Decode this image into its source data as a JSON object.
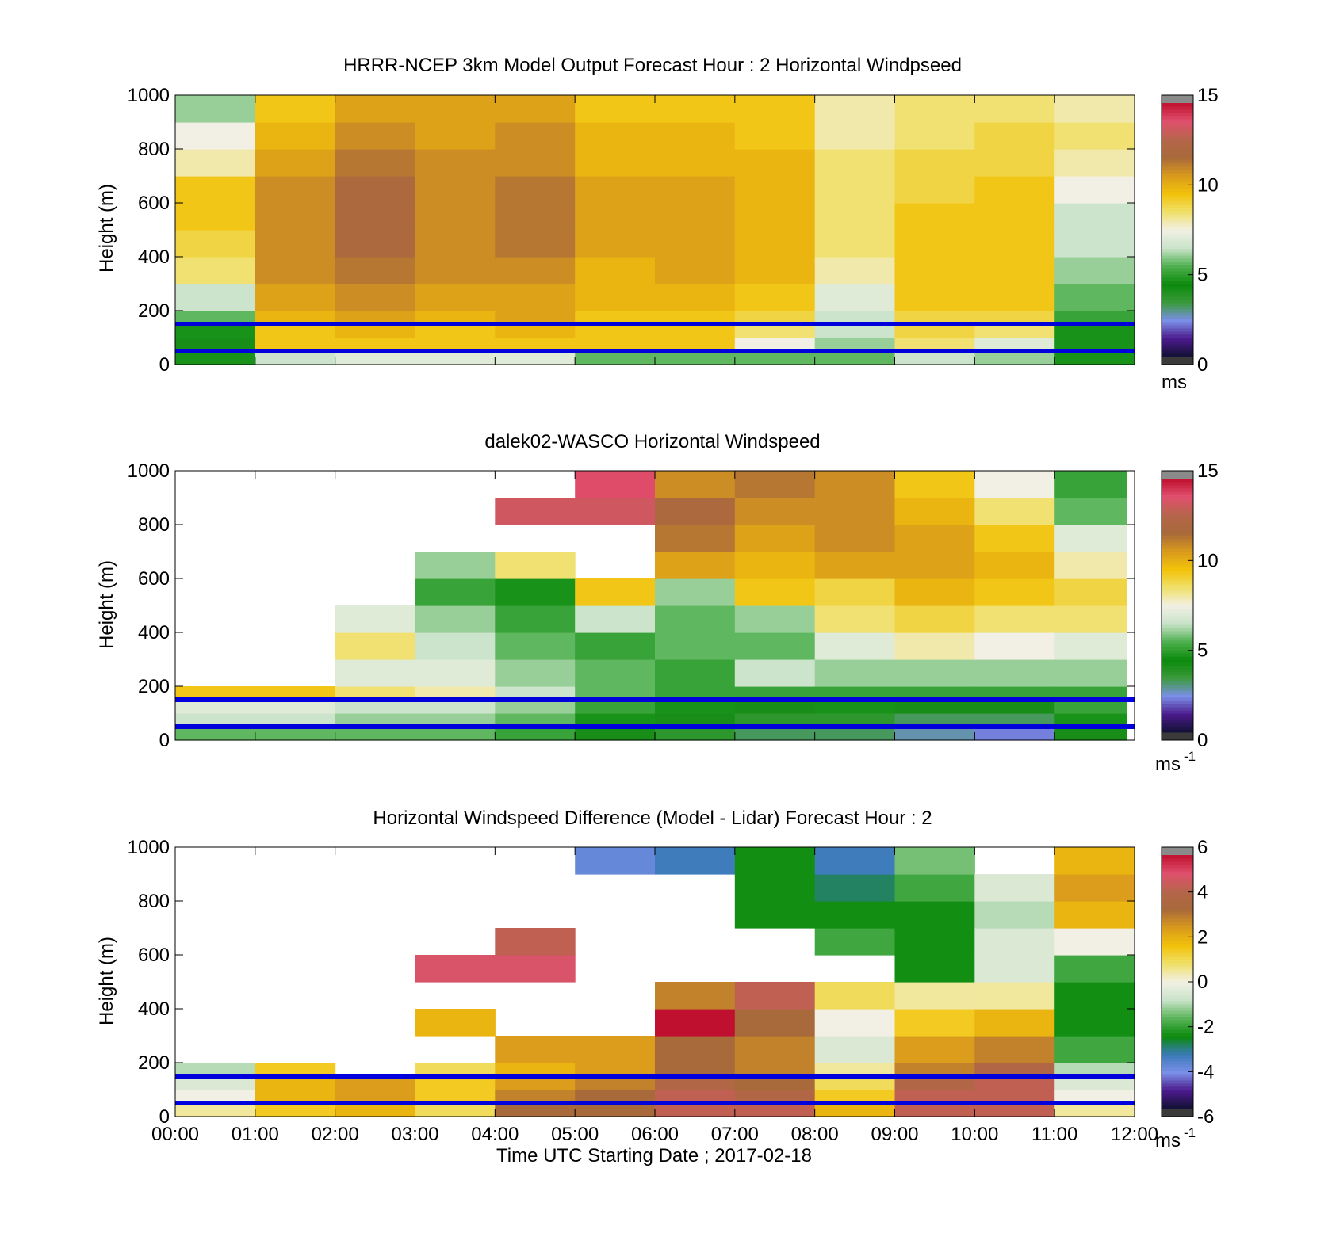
{
  "colors": {
    "speed_scale": [
      "#3a3a3a",
      "#111133",
      "#4b1a8c",
      "#7b8fe8",
      "#3a9a3a",
      "#0b8a0b",
      "#4fb04f",
      "#c9e3c9",
      "#f2f0e4",
      "#f0e06a",
      "#f2c20a",
      "#d99a1c",
      "#a86a3a",
      "#b5654a",
      "#e0506e",
      "#c01030",
      "#8a8a8a"
    ],
    "diff_scale": [
      "#3a3a3a",
      "#111133",
      "#4b1a8c",
      "#7b8fe8",
      "#3a7ab8",
      "#0b8a0b",
      "#5ab45a",
      "#c9e3c9",
      "#f2f0e4",
      "#f0e06a",
      "#f2c20a",
      "#d99a1c",
      "#a86a3a",
      "#b5654a",
      "#e0506e",
      "#c01030",
      "#8a8a8a"
    ],
    "reference_line": "#0000dd"
  },
  "chart_data": [
    {
      "type": "heatmap",
      "title": "HRRR-NCEP 3km Model Output   Forecast Hour : 2 Horizontal Windpseed",
      "ylabel": "Height (m)",
      "ylim": [
        0,
        1000
      ],
      "yticks": [
        0,
        200,
        400,
        600,
        800,
        1000
      ],
      "xlim": [
        0,
        12
      ],
      "colorbar": {
        "min": 0,
        "max": 15,
        "ticks": [
          0,
          5,
          10,
          15
        ],
        "unit": "ms",
        "unit_sup": ""
      },
      "reference_heights_m": [
        50,
        150
      ],
      "heights_m": [
        50,
        100,
        150,
        200,
        300,
        400,
        500,
        600,
        700,
        800,
        900,
        1000
      ],
      "columns": [
        {
          "t0": 0,
          "t1": 1,
          "values": [
            4.5,
            4.0,
            4.5,
            5.5,
            6.5,
            8.5,
            9.0,
            9.5,
            9.5,
            8.0,
            7.5,
            6.0
          ]
        },
        {
          "t0": 1,
          "t1": 2,
          "values": [
            6.5,
            9.5,
            9.5,
            10.0,
            10.5,
            11.0,
            11.0,
            11.0,
            11.0,
            10.5,
            10.0,
            9.5
          ]
        },
        {
          "t0": 2,
          "t1": 3,
          "values": [
            7.0,
            9.5,
            10.0,
            10.5,
            11.0,
            11.5,
            12.0,
            12.0,
            12.0,
            11.5,
            11.0,
            10.5
          ]
        },
        {
          "t0": 3,
          "t1": 4,
          "values": [
            7.0,
            9.5,
            9.5,
            10.0,
            10.5,
            11.0,
            11.0,
            11.0,
            11.0,
            11.0,
            10.5,
            10.5
          ]
        },
        {
          "t0": 4,
          "t1": 5,
          "values": [
            7.0,
            9.5,
            10.0,
            10.5,
            10.5,
            11.0,
            11.5,
            11.5,
            11.5,
            11.0,
            11.0,
            10.5
          ]
        },
        {
          "t0": 5,
          "t1": 6,
          "values": [
            5.5,
            9.5,
            9.5,
            9.5,
            10.0,
            10.0,
            10.5,
            10.5,
            10.5,
            10.0,
            10.0,
            9.5
          ]
        },
        {
          "t0": 6,
          "t1": 7,
          "values": [
            5.5,
            9.5,
            9.5,
            9.5,
            10.0,
            10.5,
            10.5,
            10.5,
            10.5,
            10.0,
            10.0,
            9.5
          ]
        },
        {
          "t0": 7,
          "t1": 8,
          "values": [
            5.5,
            7.5,
            8.5,
            9.0,
            9.5,
            10.0,
            10.0,
            10.0,
            10.0,
            10.0,
            9.5,
            9.5
          ]
        },
        {
          "t0": 8,
          "t1": 9,
          "values": [
            5.5,
            6.0,
            6.5,
            6.5,
            7.0,
            8.0,
            8.5,
            8.5,
            8.5,
            8.5,
            8.0,
            8.0
          ]
        },
        {
          "t0": 9,
          "t1": 10,
          "values": [
            6.5,
            8.5,
            9.0,
            9.0,
            9.5,
            9.5,
            9.5,
            9.5,
            9.0,
            9.0,
            8.5,
            8.5
          ]
        },
        {
          "t0": 10,
          "t1": 11,
          "values": [
            6.0,
            7.0,
            8.5,
            9.0,
            9.5,
            9.5,
            9.5,
            9.5,
            9.5,
            9.0,
            9.0,
            8.5
          ]
        },
        {
          "t0": 11,
          "t1": 12,
          "values": [
            4.5,
            4.5,
            4.5,
            5.0,
            5.5,
            6.0,
            6.5,
            6.5,
            7.5,
            8.0,
            8.5,
            8.0
          ]
        }
      ]
    },
    {
      "type": "heatmap",
      "title": "dalek02-WASCO  Horizontal Windspeed",
      "ylabel": "Height (m)",
      "ylim": [
        0,
        1000
      ],
      "yticks": [
        0,
        200,
        400,
        600,
        800,
        1000
      ],
      "xlim": [
        0,
        12
      ],
      "colorbar": {
        "min": 0,
        "max": 15,
        "ticks": [
          0,
          5,
          10,
          15
        ],
        "unit": "ms",
        "unit_sup": "-1"
      },
      "reference_heights_m": [
        50,
        150
      ],
      "heights_m": [
        50,
        100,
        150,
        200,
        300,
        400,
        500,
        600,
        700,
        800,
        900,
        1000
      ],
      "columns": [
        {
          "t0": 0.0,
          "t1": 1.0,
          "values": [
            5.5,
            6.5,
            7.0,
            9.5,
            null,
            null,
            null,
            null,
            null,
            null,
            null,
            null
          ]
        },
        {
          "t0": 1.0,
          "t1": 2.0,
          "values": [
            5.5,
            6.5,
            7.0,
            9.5,
            null,
            null,
            null,
            null,
            null,
            null,
            null,
            null
          ]
        },
        {
          "t0": 2.0,
          "t1": 3.0,
          "values": [
            5.5,
            6.0,
            6.5,
            8.5,
            7.0,
            8.5,
            7.0,
            null,
            null,
            null,
            null,
            null
          ]
        },
        {
          "t0": 3.0,
          "t1": 4.0,
          "values": [
            5.5,
            6.0,
            6.5,
            8.0,
            7.0,
            6.5,
            6.0,
            5.0,
            6.0,
            null,
            null,
            null
          ]
        },
        {
          "t0": 4.0,
          "t1": 5.0,
          "values": [
            5.0,
            5.5,
            6.0,
            6.5,
            6.0,
            5.5,
            5.0,
            4.5,
            8.5,
            null,
            13.5,
            null
          ]
        },
        {
          "t0": 5.0,
          "t1": 6.0,
          "values": [
            4.0,
            4.5,
            5.0,
            5.5,
            5.5,
            5.0,
            6.5,
            9.5,
            null,
            null,
            13.5,
            14.0
          ]
        },
        {
          "t0": 6.0,
          "t1": 7.0,
          "values": [
            3.5,
            4.0,
            4.5,
            5.0,
            5.0,
            5.5,
            5.5,
            6.0,
            10.5,
            11.5,
            12.0,
            11.0
          ]
        },
        {
          "t0": 7.0,
          "t1": 8.0,
          "values": [
            3.0,
            3.5,
            4.0,
            5.0,
            6.5,
            5.5,
            6.0,
            9.5,
            10.0,
            10.5,
            11.0,
            11.5
          ]
        },
        {
          "t0": 8.0,
          "t1": 9.0,
          "values": [
            3.0,
            3.5,
            4.5,
            5.0,
            6.0,
            7.0,
            8.5,
            9.0,
            10.5,
            11.0,
            11.0,
            11.0
          ]
        },
        {
          "t0": 9.0,
          "t1": 10.0,
          "values": [
            2.5,
            3.0,
            4.0,
            5.0,
            6.0,
            8.0,
            9.0,
            10.0,
            10.5,
            10.5,
            10.0,
            9.5
          ]
        },
        {
          "t0": 10.0,
          "t1": 11.0,
          "values": [
            2.0,
            3.0,
            4.0,
            5.0,
            6.0,
            7.5,
            8.5,
            9.5,
            10.0,
            9.5,
            8.5,
            7.5
          ]
        },
        {
          "t0": 11.0,
          "t1": 11.9,
          "values": [
            4.0,
            4.5,
            5.0,
            5.0,
            6.0,
            7.0,
            8.5,
            9.0,
            8.0,
            7.0,
            5.5,
            5.0
          ]
        }
      ]
    },
    {
      "type": "heatmap",
      "title": "Horizontal Windspeed Difference (Model - Lidar) Forecast Hour : 2",
      "ylabel": "Height (m)",
      "xlabel": "Time UTC  Starting Date ; 2017-02-18",
      "ylim": [
        0,
        1000
      ],
      "yticks": [
        0,
        200,
        400,
        600,
        800,
        1000
      ],
      "xlim": [
        0,
        12
      ],
      "xticks": [
        "00:00",
        "01:00",
        "02:00",
        "03:00",
        "04:00",
        "05:00",
        "06:00",
        "07:00",
        "08:00",
        "09:00",
        "10:00",
        "11:00",
        "12:00"
      ],
      "colorbar": {
        "min": -6,
        "max": 6,
        "ticks": [
          -6,
          -4,
          -2,
          0,
          2,
          4,
          6
        ],
        "unit": "ms",
        "unit_sup": "-1"
      },
      "reference_heights_m": [
        50,
        150
      ],
      "heights_m": [
        50,
        100,
        150,
        200,
        300,
        400,
        500,
        600,
        700,
        800,
        900,
        1000
      ],
      "columns": [
        {
          "t0": 0,
          "t1": 1,
          "values": [
            0.5,
            0.0,
            -0.5,
            -1.0,
            null,
            null,
            null,
            null,
            null,
            null,
            null,
            null
          ]
        },
        {
          "t0": 1,
          "t1": 2,
          "values": [
            1.5,
            2.0,
            2.0,
            1.5,
            null,
            null,
            null,
            null,
            null,
            null,
            null,
            null
          ]
        },
        {
          "t0": 2,
          "t1": 3,
          "values": [
            2.0,
            2.5,
            2.5,
            null,
            null,
            null,
            null,
            null,
            null,
            null,
            null,
            null
          ]
        },
        {
          "t0": 3,
          "t1": 4,
          "values": [
            1.0,
            1.5,
            1.5,
            1.0,
            null,
            2.0,
            null,
            5.0,
            null,
            null,
            null,
            null
          ]
        },
        {
          "t0": 4,
          "t1": 5,
          "values": [
            3.5,
            3.0,
            2.5,
            2.0,
            2.5,
            null,
            null,
            5.0,
            4.5,
            null,
            null,
            null
          ]
        },
        {
          "t0": 5,
          "t1": 6,
          "values": [
            3.5,
            3.5,
            3.0,
            2.5,
            2.5,
            null,
            null,
            null,
            null,
            null,
            null,
            -4.0
          ]
        },
        {
          "t0": 6,
          "t1": 7,
          "values": [
            4.5,
            4.5,
            4.0,
            3.5,
            3.5,
            6.0,
            3.0,
            null,
            null,
            null,
            null,
            -3.5
          ]
        },
        {
          "t0": 7,
          "t1": 8,
          "values": [
            4.5,
            4.0,
            3.5,
            3.0,
            3.0,
            3.5,
            4.5,
            null,
            null,
            -2.5,
            -2.5,
            -2.5
          ]
        },
        {
          "t0": 8,
          "t1": 9,
          "values": [
            2.0,
            1.5,
            1.0,
            0.5,
            -0.5,
            0.0,
            1.0,
            null,
            -2.0,
            -2.5,
            -3.0,
            -3.5
          ]
        },
        {
          "t0": 9,
          "t1": 10,
          "values": [
            4.5,
            4.5,
            4.0,
            3.0,
            2.5,
            1.5,
            0.5,
            -2.5,
            -2.5,
            -2.5,
            -2.0,
            -1.5
          ]
        },
        {
          "t0": 10,
          "t1": 11,
          "values": [
            4.5,
            4.5,
            4.5,
            4.0,
            3.0,
            2.0,
            0.5,
            -0.5,
            -0.5,
            -1.0,
            -0.5,
            null
          ]
        },
        {
          "t0": 11,
          "t1": 12,
          "values": [
            0.5,
            0.0,
            -0.5,
            -1.0,
            -2.0,
            -2.5,
            -2.5,
            -2.0,
            0.0,
            2.0,
            2.5,
            2.0
          ]
        }
      ]
    }
  ]
}
